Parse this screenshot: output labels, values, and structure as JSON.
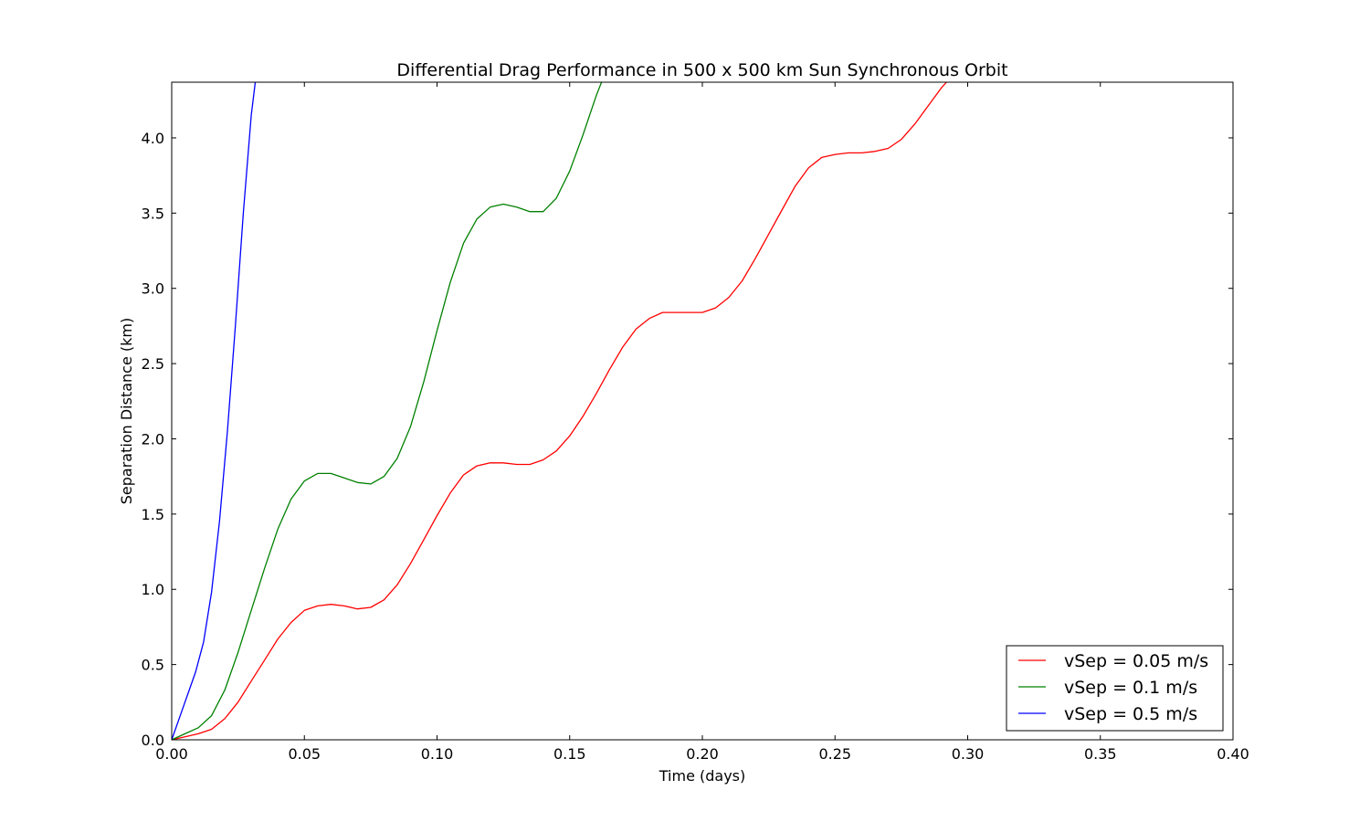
{
  "chart_data": {
    "type": "line",
    "title": "Differential Drag Performance in 500 x 500 km Sun Synchronous Orbit",
    "xlabel": "Time (days)",
    "ylabel": "Separation Distance (km)",
    "xlim": [
      0.0,
      0.4
    ],
    "ylim": [
      0.0,
      4.37
    ],
    "xticks": [
      "0.00",
      "0.05",
      "0.10",
      "0.15",
      "0.20",
      "0.25",
      "0.30",
      "0.35",
      "0.40"
    ],
    "yticks": [
      "0.0",
      "0.5",
      "1.0",
      "1.5",
      "2.0",
      "2.5",
      "3.0",
      "3.5",
      "4.0"
    ],
    "grid": false,
    "legend_position": "lower-right",
    "series": [
      {
        "name": "vSep = 0.05 m/s",
        "color": "#ff0000",
        "x": [
          0.0,
          0.005,
          0.01,
          0.015,
          0.02,
          0.025,
          0.03,
          0.035,
          0.04,
          0.045,
          0.05,
          0.055,
          0.06,
          0.065,
          0.07,
          0.075,
          0.08,
          0.085,
          0.09,
          0.095,
          0.1,
          0.105,
          0.11,
          0.115,
          0.12,
          0.125,
          0.13,
          0.135,
          0.14,
          0.145,
          0.15,
          0.155,
          0.16,
          0.165,
          0.17,
          0.175,
          0.18,
          0.185,
          0.19,
          0.195,
          0.2,
          0.205,
          0.21,
          0.215,
          0.22,
          0.225,
          0.23,
          0.235,
          0.24,
          0.245,
          0.25,
          0.255,
          0.26,
          0.265,
          0.27,
          0.275,
          0.28,
          0.285,
          0.29,
          0.292
        ],
        "y": [
          0.0,
          0.02,
          0.04,
          0.07,
          0.14,
          0.25,
          0.39,
          0.53,
          0.67,
          0.78,
          0.86,
          0.89,
          0.9,
          0.89,
          0.87,
          0.88,
          0.93,
          1.03,
          1.17,
          1.33,
          1.49,
          1.64,
          1.76,
          1.82,
          1.84,
          1.84,
          1.83,
          1.83,
          1.86,
          1.92,
          2.02,
          2.15,
          2.3,
          2.46,
          2.61,
          2.73,
          2.8,
          2.84,
          2.84,
          2.84,
          2.84,
          2.87,
          2.94,
          3.05,
          3.2,
          3.36,
          3.52,
          3.68,
          3.8,
          3.87,
          3.89,
          3.9,
          3.9,
          3.91,
          3.93,
          3.99,
          4.09,
          4.21,
          4.33,
          4.37
        ]
      },
      {
        "name": "vSep = 0.1 m/s",
        "color": "#008000",
        "x": [
          0.0,
          0.005,
          0.01,
          0.015,
          0.02,
          0.025,
          0.03,
          0.035,
          0.04,
          0.045,
          0.05,
          0.055,
          0.06,
          0.065,
          0.07,
          0.075,
          0.08,
          0.085,
          0.09,
          0.095,
          0.1,
          0.105,
          0.11,
          0.115,
          0.12,
          0.125,
          0.13,
          0.135,
          0.14,
          0.145,
          0.15,
          0.155,
          0.16,
          0.162
        ],
        "y": [
          0.0,
          0.04,
          0.08,
          0.16,
          0.33,
          0.58,
          0.86,
          1.14,
          1.4,
          1.6,
          1.72,
          1.77,
          1.77,
          1.74,
          1.71,
          1.7,
          1.75,
          1.87,
          2.08,
          2.38,
          2.72,
          3.04,
          3.3,
          3.46,
          3.54,
          3.56,
          3.54,
          3.51,
          3.51,
          3.6,
          3.78,
          4.02,
          4.28,
          4.37
        ]
      },
      {
        "name": "vSep = 0.5 m/s",
        "color": "#0000ff",
        "x": [
          0.0,
          0.003,
          0.006,
          0.009,
          0.012,
          0.015,
          0.018,
          0.021,
          0.024,
          0.027,
          0.03,
          0.0315
        ],
        "y": [
          0.0,
          0.15,
          0.3,
          0.45,
          0.65,
          0.98,
          1.45,
          2.05,
          2.75,
          3.5,
          4.15,
          4.37
        ]
      }
    ]
  }
}
